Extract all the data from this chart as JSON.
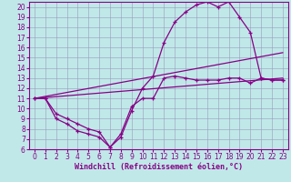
{
  "xlabel": "Windchill (Refroidissement éolien,°C)",
  "background_color": "#c0e8e8",
  "grid_color": "#9999bb",
  "line_color": "#880088",
  "xlim": [
    -0.5,
    23.5
  ],
  "ylim": [
    6,
    20.5
  ],
  "xticks": [
    0,
    1,
    2,
    3,
    4,
    5,
    6,
    7,
    8,
    9,
    10,
    11,
    12,
    13,
    14,
    15,
    16,
    17,
    18,
    19,
    20,
    21,
    22,
    23
  ],
  "yticks": [
    6,
    7,
    8,
    9,
    10,
    11,
    12,
    13,
    14,
    15,
    16,
    17,
    18,
    19,
    20
  ],
  "curve1_x": [
    0,
    1,
    2,
    3,
    4,
    5,
    6,
    7,
    8,
    9,
    10,
    11,
    12,
    13,
    14,
    15,
    16,
    17,
    18,
    19,
    20,
    21,
    22,
    23
  ],
  "curve1_y": [
    11,
    11,
    9,
    8.5,
    7.8,
    7.5,
    7.2,
    6.2,
    7.5,
    10.2,
    11,
    11,
    13,
    13.2,
    13,
    12.8,
    12.8,
    12.8,
    13,
    13,
    12.5,
    13,
    12.8,
    12.8
  ],
  "curve2_x": [
    0,
    1,
    2,
    3,
    4,
    5,
    6,
    7,
    8,
    9,
    10,
    11,
    12,
    13,
    14,
    15,
    16,
    17,
    18,
    19,
    20,
    21,
    22,
    23
  ],
  "curve2_y": [
    11,
    11,
    9.5,
    9,
    8.5,
    8,
    7.7,
    6.2,
    7.2,
    9.8,
    12,
    13.2,
    16.5,
    18.5,
    19.5,
    20.2,
    20.5,
    20,
    20.5,
    19,
    17.5,
    13,
    12.8,
    12.8
  ],
  "line1_x": [
    0,
    23
  ],
  "line1_y": [
    11.0,
    15.5
  ],
  "line2_x": [
    0,
    23
  ],
  "line2_y": [
    11.0,
    13.0
  ],
  "fontsize_tick": 5.5,
  "fontsize_xlabel": 6.0
}
